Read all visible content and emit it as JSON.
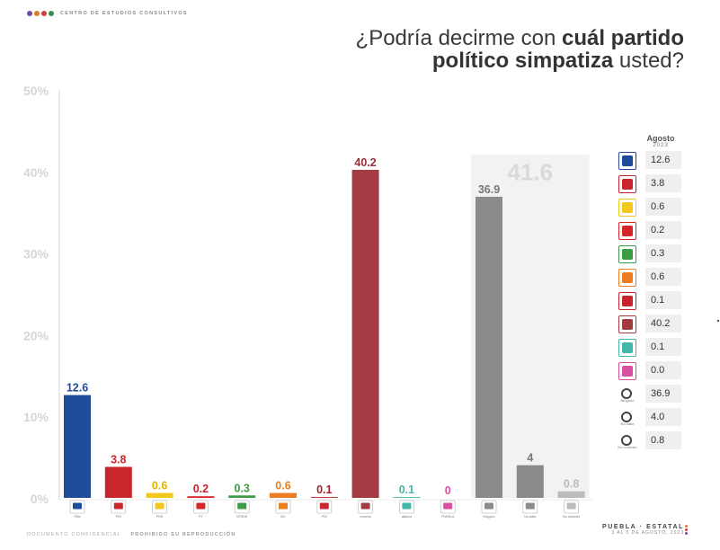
{
  "header": {
    "org": "CENTRO DE ESTUDIOS CONSULTIVOS",
    "brand_colors": [
      "#7a4a9a",
      "#e07b2a",
      "#d43d3d",
      "#3a8f4e"
    ],
    "title_line1_normal": "¿Podría decirme con ",
    "title_line1_bold": "cuál partido",
    "title_line2_bold": "político simpatiza",
    "title_line2_normal": " usted?"
  },
  "chart_data": {
    "type": "bar",
    "title": "¿Podría decirme con cuál partido político simpatiza usted?",
    "ylim": [
      0,
      50
    ],
    "yticks": [
      "0%",
      "10%",
      "20%",
      "30%",
      "40%",
      "50%"
    ],
    "grid": false,
    "categories": [
      {
        "label": "PAN",
        "icon": "pan-logo-icon",
        "value": 12.6,
        "value_label": "12.6",
        "color": "#1f4c9a",
        "label_color": "#1f4c9a"
      },
      {
        "label": "PRI",
        "icon": "pri-logo-icon",
        "value": 3.8,
        "value_label": "3.8",
        "color": "#c9252c",
        "label_color": "#c9252c"
      },
      {
        "label": "PRD",
        "icon": "prd-logo-icon",
        "value": 0.6,
        "value_label": "0.6",
        "color": "#f2c81a",
        "label_color": "#e0b400"
      },
      {
        "label": "PT",
        "icon": "pt-logo-icon",
        "value": 0.2,
        "value_label": "0.2",
        "color": "#d6262a",
        "label_color": "#c9252c"
      },
      {
        "label": "VERDE",
        "icon": "verde-logo-icon",
        "value": 0.3,
        "value_label": "0.3",
        "color": "#3d9b45",
        "label_color": "#3d9b45"
      },
      {
        "label": "MC",
        "icon": "mc-logo-icon",
        "value": 0.6,
        "value_label": "0.6",
        "color": "#ee7d22",
        "label_color": "#ee7d22"
      },
      {
        "label": "PSI",
        "icon": "psi-logo-icon",
        "value": 0.1,
        "value_label": "0.1",
        "color": "#c9252c",
        "label_color": "#a21e2e"
      },
      {
        "label": "morena",
        "icon": "morena-logo-icon",
        "value": 40.2,
        "value_label": "40.2",
        "color": "#a23c42",
        "label_color": "#9a2f36"
      },
      {
        "label": "alianza",
        "icon": "alianza-logo-icon",
        "value": 0.1,
        "value_label": "0.1",
        "color": "#43b7a8",
        "label_color": "#43b7a8"
      },
      {
        "label": "PUEBLA",
        "icon": "puebla-logo-icon",
        "value": 0.0,
        "value_label": "0",
        "color": "#d84fa0",
        "label_color": "#d84fa0"
      },
      {
        "label": "Ninguno",
        "icon": "ninguno-icon",
        "value": 36.9,
        "value_label": "36.9",
        "color": "#8a8a8a",
        "label_color": "#777777"
      },
      {
        "label": "No sabe",
        "icon": "no-sabe-icon",
        "value": 4.0,
        "value_label": "4",
        "color": "#8a8a8a",
        "label_color": "#777777"
      },
      {
        "label": "No contestó",
        "icon": "no-contesto-icon",
        "value": 0.8,
        "value_label": "0.8",
        "color": "#bbbbbb",
        "label_color": "#bbbbbb"
      }
    ],
    "annotation": {
      "label": "41.6",
      "value": 41.6,
      "covers": [
        "Ninguno",
        "No sabe",
        "No contestó"
      ]
    }
  },
  "legend": {
    "month": "Agosto",
    "year": "2023",
    "rows": [
      {
        "icon": "pan-logo-icon",
        "value": "12.6"
      },
      {
        "icon": "pri-logo-icon",
        "value": "3.8"
      },
      {
        "icon": "prd-logo-icon",
        "value": "0.6"
      },
      {
        "icon": "pt-logo-icon",
        "value": "0.2"
      },
      {
        "icon": "verde-logo-icon",
        "value": "0.3"
      },
      {
        "icon": "mc-logo-icon",
        "value": "0.6"
      },
      {
        "icon": "psi-logo-icon",
        "value": "0.1"
      },
      {
        "icon": "morena-logo-icon",
        "value": "40.2"
      },
      {
        "icon": "alianza-logo-icon",
        "value": "0.1"
      },
      {
        "icon": "puebla-logo-icon",
        "value": "0.0"
      },
      {
        "icon": "ninguno-icon",
        "value": "36.9",
        "sub": "Ninguno"
      },
      {
        "icon": "no-sabe-icon",
        "value": "4.0",
        "sub": "No sabe"
      },
      {
        "icon": "no-contesto-icon",
        "value": "0.8",
        "sub": "No contestó"
      }
    ]
  },
  "footer": {
    "left_a": "DOCUMENTO CONFIDENCIAL",
    "left_b": "PROHIBIDO SU REPRODUCCIÓN",
    "right_a": "PUEBLA · ESTATAL",
    "right_b": "3 AL 5 DE AGOSTO, 2023"
  }
}
